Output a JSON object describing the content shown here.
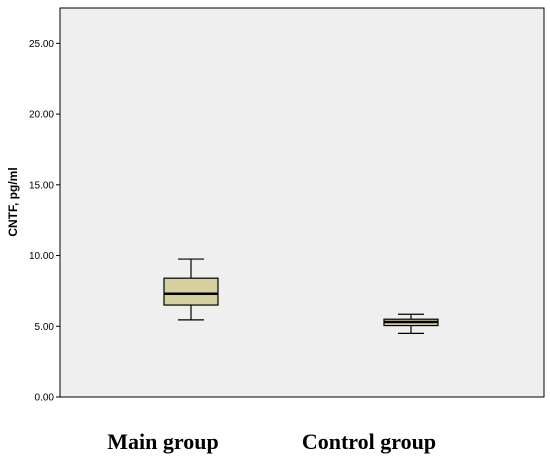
{
  "chart_data": {
    "type": "boxplot",
    "title": "",
    "xlabel": "",
    "ylabel": "CNTF, pg/ml",
    "ylim": [
      0,
      27.5
    ],
    "yticks": [
      "0.00",
      "5.00",
      "10.00",
      "15.00",
      "20.00",
      "25.00"
    ],
    "yticks_values": [
      0,
      5,
      10,
      15,
      20,
      25
    ],
    "grid": false,
    "legend": "none",
    "categories": [
      "Main group",
      "Control group"
    ],
    "boxes": [
      {
        "category": "Main group",
        "whisker_low": 5.45,
        "q1": 6.5,
        "median": 7.3,
        "q3": 8.4,
        "whisker_high": 9.75
      },
      {
        "category": "Control group",
        "whisker_low": 4.5,
        "q1": 5.05,
        "median": 5.3,
        "q3": 5.5,
        "whisker_high": 5.85
      }
    ],
    "colors": {
      "plot_background": "#efefef",
      "box_fill": "#d6cf9e",
      "stroke": "#000000"
    }
  }
}
